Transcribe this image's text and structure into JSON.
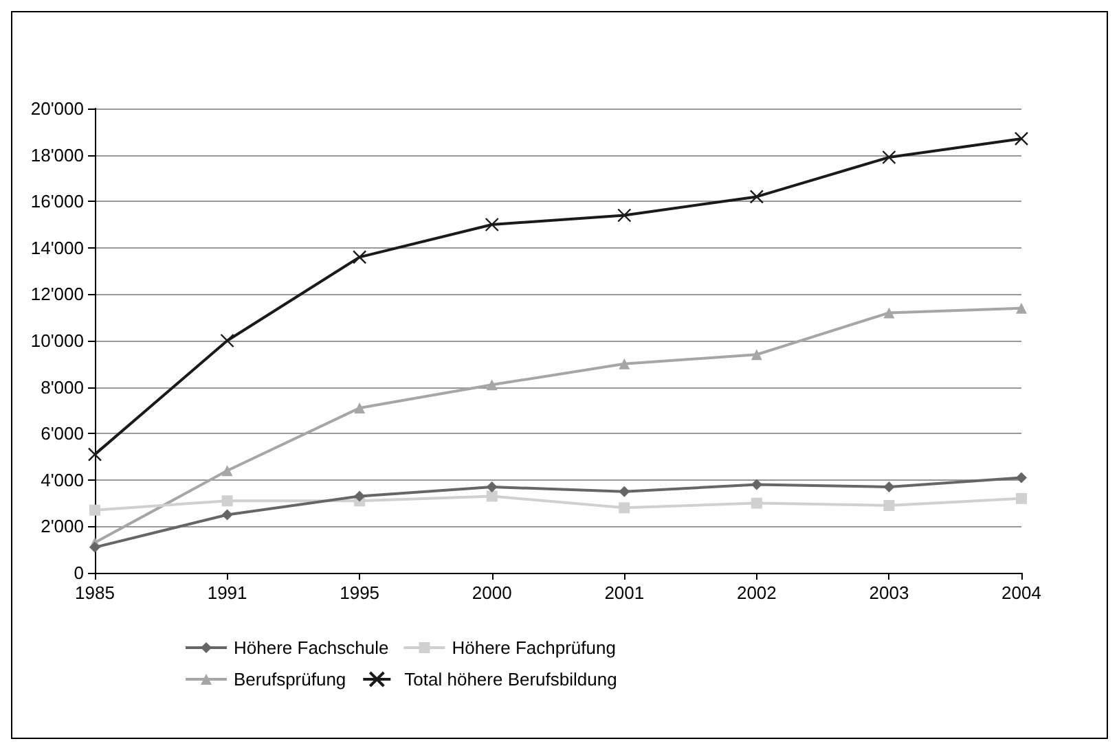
{
  "chart_data": {
    "type": "line",
    "categories": [
      "1985",
      "1991",
      "1995",
      "2000",
      "2001",
      "2002",
      "2003",
      "2004"
    ],
    "series": [
      {
        "name": "Höhere Fachschule",
        "color": "#666666",
        "marker": "diamond",
        "values": [
          1100,
          2500,
          3300,
          3700,
          3500,
          3800,
          3700,
          4100
        ]
      },
      {
        "name": "Höhere Fachprüfung",
        "color": "#d0d0d0",
        "marker": "square",
        "values": [
          2700,
          3100,
          3100,
          3300,
          2800,
          3000,
          2900,
          3200
        ]
      },
      {
        "name": "Berufsprüfung",
        "color": "#a6a6a6",
        "marker": "triangle",
        "values": [
          1300,
          4400,
          7100,
          8100,
          9000,
          9400,
          11200,
          11400
        ]
      },
      {
        "name": "Total höhere Berufsbildung",
        "color": "#1a1a1a",
        "marker": "cross",
        "values": [
          5100,
          10000,
          13600,
          15000,
          15400,
          16200,
          17900,
          18700
        ]
      }
    ],
    "ylim": [
      0,
      20000
    ],
    "yticks": [
      0,
      {
        "value": 2000,
        "label": "2'000"
      },
      {
        "value": 4000,
        "label": "4'000"
      },
      {
        "value": 6000,
        "label": "6'000"
      },
      {
        "value": 8000,
        "label": "8'000"
      },
      {
        "value": 10000,
        "label": "10'000"
      },
      {
        "value": 12000,
        "label": "12'000"
      },
      {
        "value": 14000,
        "label": "14'000"
      },
      {
        "value": 16000,
        "label": "16'000"
      },
      {
        "value": 18000,
        "label": "18'000"
      },
      {
        "value": 20000,
        "label": "20'000"
      }
    ],
    "grid": "y",
    "legend": "bottom",
    "line_style": "solid"
  }
}
